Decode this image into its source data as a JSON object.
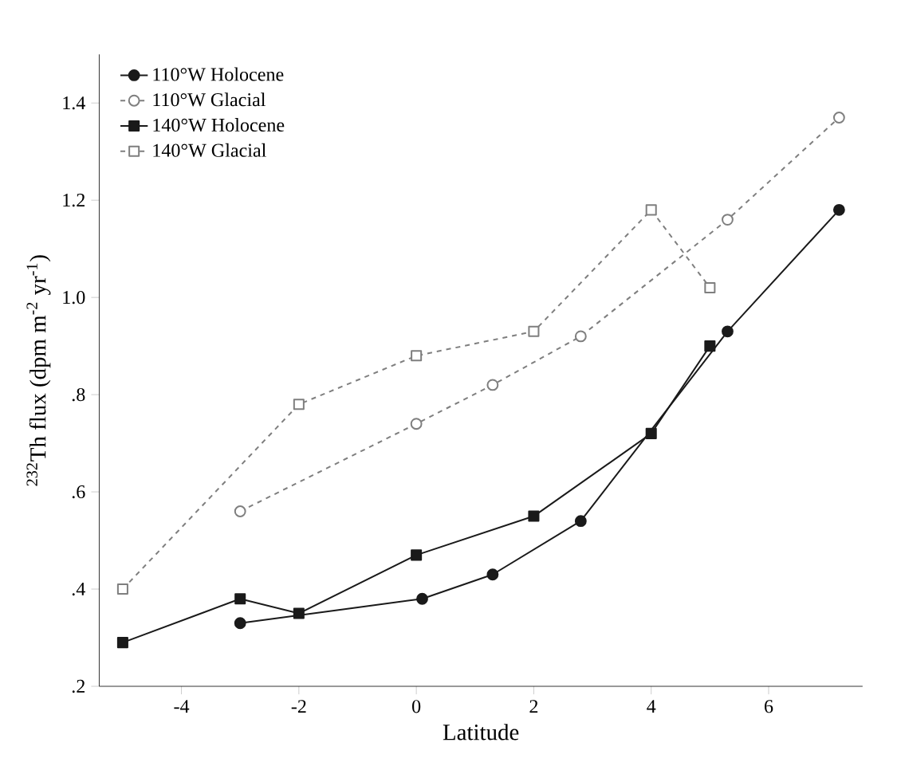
{
  "chart_data": {
    "type": "line",
    "xlabel": "Latitude",
    "ylabel": "$^{232}$Th flux (dpm m$^{-2}$ yr$^{-1}$)",
    "xlim": [
      -5.4,
      7.6
    ],
    "xticks": [
      -4,
      -2,
      0,
      2,
      4,
      6
    ],
    "ylim": [
      0.2,
      1.5
    ],
    "yticks": [
      {
        "value": 0.2,
        "label": ".2"
      },
      {
        "value": 0.4,
        "label": ".4"
      },
      {
        "value": 0.6,
        "label": ".6"
      },
      {
        "value": 0.8,
        "label": ".8"
      },
      {
        "value": 1.0,
        "label": "1.0"
      },
      {
        "value": 1.2,
        "label": "1.2"
      },
      {
        "value": 1.4,
        "label": "1.4"
      }
    ],
    "legend": "top left",
    "grid": false,
    "series": [
      {
        "name": "110°W Holocene",
        "color": "#1a1a1a",
        "marker": "circle",
        "line_style": "solid",
        "x": [
          -3,
          0.1,
          1.3,
          2.8,
          5.3,
          7.2
        ],
        "values": [
          0.33,
          0.38,
          0.43,
          0.54,
          0.93,
          1.18
        ]
      },
      {
        "name": "110°W Glacial",
        "color": "#7f7f7f",
        "marker": "circle",
        "line_style": "dashed",
        "x": [
          -3,
          0,
          1.3,
          2.8,
          5.3,
          7.2
        ],
        "values": [
          0.56,
          0.74,
          0.82,
          0.92,
          1.16,
          1.37
        ]
      },
      {
        "name": "140°W Holocene",
        "color": "#1a1a1a",
        "marker": "square",
        "line_style": "solid",
        "x": [
          -5,
          -3,
          -2,
          0,
          2,
          4,
          5
        ],
        "values": [
          0.29,
          0.38,
          0.35,
          0.47,
          0.55,
          0.72,
          0.9
        ]
      },
      {
        "name": "140°W Glacial",
        "color": "#7f7f7f",
        "marker": "square",
        "line_style": "dashed",
        "x": [
          -5,
          -2,
          0,
          2,
          4,
          5
        ],
        "values": [
          0.4,
          0.78,
          0.88,
          0.93,
          1.18,
          1.02
        ]
      }
    ]
  }
}
